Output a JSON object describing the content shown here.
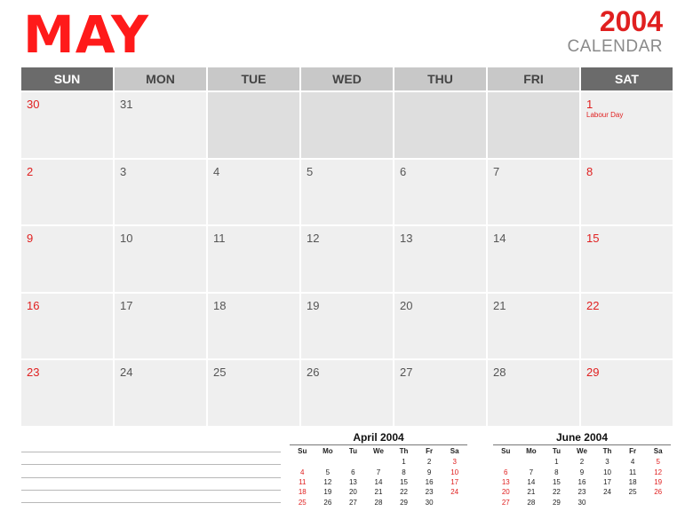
{
  "header": {
    "month": "MAY",
    "year": "2004",
    "label": "CALENDAR"
  },
  "weekdays": [
    "SUN",
    "MON",
    "TUE",
    "WED",
    "THU",
    "FRI",
    "SAT"
  ],
  "weeks": [
    [
      {
        "day": "30"
      },
      {
        "day": "31"
      },
      {
        "day": ""
      },
      {
        "day": ""
      },
      {
        "day": ""
      },
      {
        "day": ""
      },
      {
        "day": "1",
        "note": "Labour Day"
      }
    ],
    [
      {
        "day": "2"
      },
      {
        "day": "3"
      },
      {
        "day": "4"
      },
      {
        "day": "5"
      },
      {
        "day": "6"
      },
      {
        "day": "7"
      },
      {
        "day": "8"
      }
    ],
    [
      {
        "day": "9"
      },
      {
        "day": "10"
      },
      {
        "day": "11"
      },
      {
        "day": "12"
      },
      {
        "day": "13"
      },
      {
        "day": "14"
      },
      {
        "day": "15"
      }
    ],
    [
      {
        "day": "16"
      },
      {
        "day": "17"
      },
      {
        "day": "18"
      },
      {
        "day": "19"
      },
      {
        "day": "20"
      },
      {
        "day": "21"
      },
      {
        "day": "22"
      }
    ],
    [
      {
        "day": "23"
      },
      {
        "day": "24"
      },
      {
        "day": "25"
      },
      {
        "day": "26"
      },
      {
        "day": "27"
      },
      {
        "day": "28"
      },
      {
        "day": "29"
      }
    ]
  ],
  "mini_calendars": [
    {
      "title": "April 2004",
      "days": [
        "Su",
        "Mo",
        "Tu",
        "We",
        "Th",
        "Fr",
        "Sa"
      ],
      "weeks": [
        [
          "",
          "",
          "",
          "",
          "1",
          "2",
          "3"
        ],
        [
          "4",
          "5",
          "6",
          "7",
          "8",
          "9",
          "10"
        ],
        [
          "11",
          "12",
          "13",
          "14",
          "15",
          "16",
          "17"
        ],
        [
          "18",
          "19",
          "20",
          "21",
          "22",
          "23",
          "24"
        ],
        [
          "25",
          "26",
          "27",
          "28",
          "29",
          "30",
          ""
        ]
      ]
    },
    {
      "title": "June 2004",
      "days": [
        "Su",
        "Mo",
        "Tu",
        "We",
        "Th",
        "Fr",
        "Sa"
      ],
      "weeks": [
        [
          "",
          "",
          "1",
          "2",
          "3",
          "4",
          "5"
        ],
        [
          "6",
          "7",
          "8",
          "9",
          "10",
          "11",
          "12"
        ],
        [
          "13",
          "14",
          "15",
          "16",
          "17",
          "18",
          "19"
        ],
        [
          "20",
          "21",
          "22",
          "23",
          "24",
          "25",
          "26"
        ],
        [
          "27",
          "28",
          "29",
          "30",
          "",
          "",
          ""
        ]
      ]
    }
  ],
  "colors": {
    "accent": "#ff1a1a",
    "weekend_text": "#e02020",
    "header_weekend": "#6b6b6b",
    "header_weekday": "#c8c8c8",
    "cell": "#efefef",
    "cell_empty": "#dedede"
  }
}
